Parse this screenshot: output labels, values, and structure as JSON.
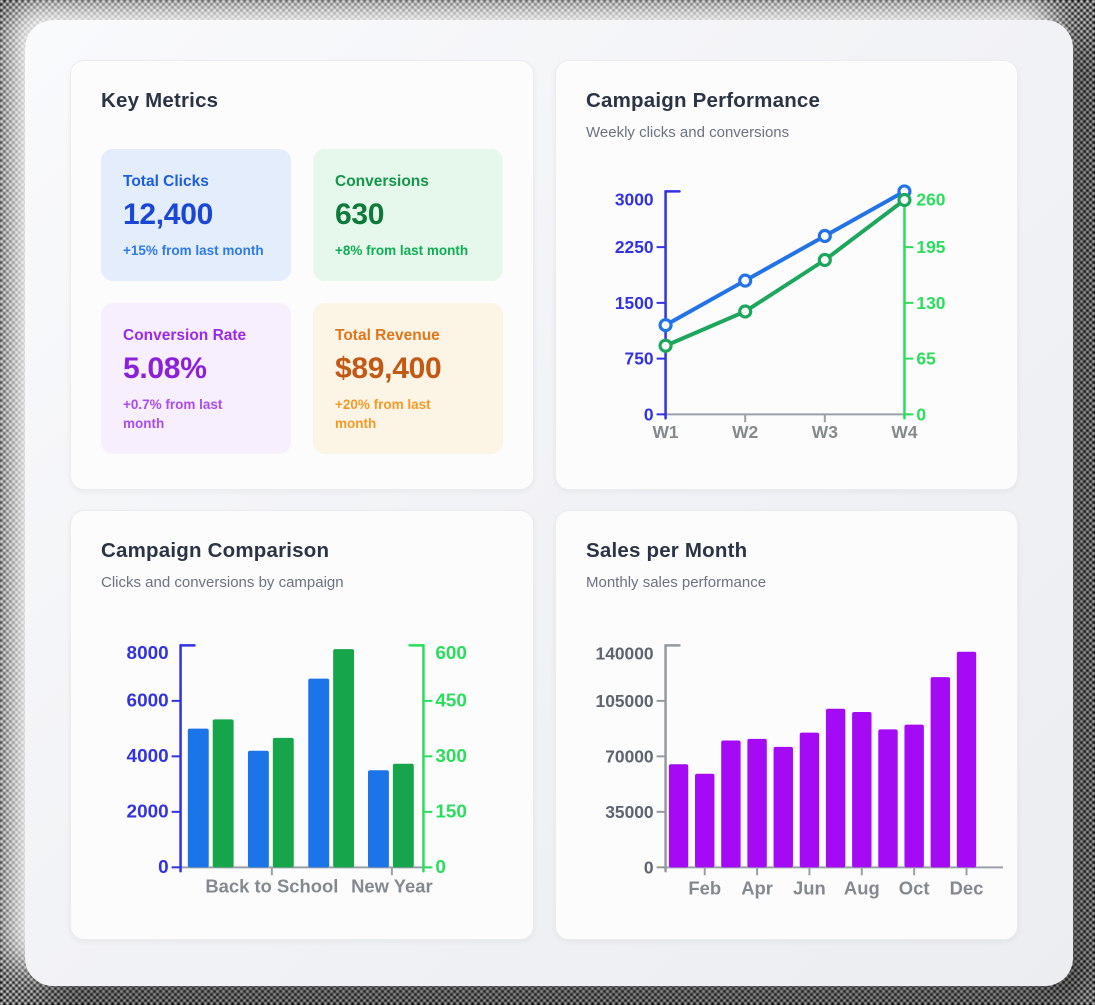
{
  "theme": {
    "axis_gray": "#9aa0a8",
    "x_label_color": "#84898f",
    "heading_color": "#2b3444",
    "subtitle_color": "#6b7280",
    "card_bg": "#fcfcfd"
  },
  "key_metrics": {
    "title": "Key Metrics",
    "tiles": [
      {
        "label": "Total Clicks",
        "value": "12,400",
        "delta": "+15% from last month",
        "bg": "#e4edfb",
        "label_color": "#1c5edb",
        "value_color": "#1a47d5",
        "delta_color": "#2e7ae8"
      },
      {
        "label": "Conversions",
        "value": "630",
        "delta": "+8% from last month",
        "bg": "#e6f7ec",
        "label_color": "#149648",
        "value_color": "#0d7a39",
        "delta_color": "#10ae52"
      },
      {
        "label": "Conversion Rate",
        "value": "5.08%",
        "delta": "+0.7% from last month",
        "bg": "#f8effe",
        "label_color": "#9a2ae8",
        "value_color": "#8b20d9",
        "delta_color": "#a94cf0"
      },
      {
        "label": "Total Revenue",
        "value": "$89,400",
        "delta": "+20% from last month",
        "bg": "#fcf5e6",
        "label_color": "#e0761c",
        "value_color": "#c25a17",
        "delta_color": "#f59a28"
      }
    ]
  },
  "chart_data": [
    {
      "id": "performance",
      "type": "line",
      "title": "Campaign Performance",
      "subtitle": "Weekly clicks and conversions",
      "x": [
        "W1",
        "W2",
        "W3",
        "W4"
      ],
      "series": [
        {
          "name": "clicks",
          "axis": "left",
          "color": "#2373e8",
          "values": [
            1200,
            1800,
            2400,
            3000
          ]
        },
        {
          "name": "conversions",
          "axis": "right",
          "color": "#1da75c",
          "values": [
            80,
            120,
            180,
            250
          ]
        }
      ],
      "left_axis": {
        "color": "#3232e2",
        "ticks": [
          0,
          750,
          1500,
          2250,
          3000
        ],
        "max": 3000,
        "cap": true
      },
      "right_axis": {
        "color": "#2ade5c",
        "ticks": [
          0,
          65,
          130,
          195,
          260
        ],
        "max": 260,
        "cap": false
      },
      "legend": "none",
      "grid": false
    },
    {
      "id": "comparison",
      "type": "bar",
      "title": "Campaign Comparison",
      "subtitle": "Clicks and conversions by campaign",
      "categories": [
        "",
        "Back to School",
        "",
        "New Year"
      ],
      "series": [
        {
          "name": "clicks",
          "axis": "left",
          "color": "#1b74e8",
          "values": [
            5000,
            4200,
            6800,
            3500
          ]
        },
        {
          "name": "conversions",
          "axis": "right",
          "color": "#16a54b",
          "values": [
            400,
            350,
            590,
            280
          ]
        }
      ],
      "left_axis": {
        "color": "#3232e2",
        "ticks": [
          0,
          2000,
          4000,
          6000,
          8000
        ],
        "max": 8000,
        "cap": true
      },
      "right_axis": {
        "color": "#2ade5c",
        "ticks": [
          0,
          150,
          300,
          450,
          600
        ],
        "max": 600,
        "cap": true
      },
      "legend": "none",
      "grid": false
    },
    {
      "id": "sales",
      "type": "bar",
      "title": "Sales per Month",
      "subtitle": "Monthly sales performance",
      "categories": [
        "",
        "Feb",
        "",
        "Apr",
        "",
        "Jun",
        "",
        "Aug",
        "",
        "Oct",
        "",
        "Dec"
      ],
      "series": [
        {
          "name": "sales",
          "axis": "left",
          "color": "#a50af5",
          "values": [
            65000,
            59000,
            80000,
            81000,
            76000,
            85000,
            100000,
            98000,
            87000,
            90000,
            120000,
            136000
          ]
        }
      ],
      "left_axis": {
        "color": "#949aa2",
        "label_color": "#5d6570",
        "ticks": [
          0,
          35000,
          70000,
          105000,
          140000
        ],
        "max": 140000,
        "cap": true
      },
      "legend": "none",
      "grid": false
    }
  ]
}
